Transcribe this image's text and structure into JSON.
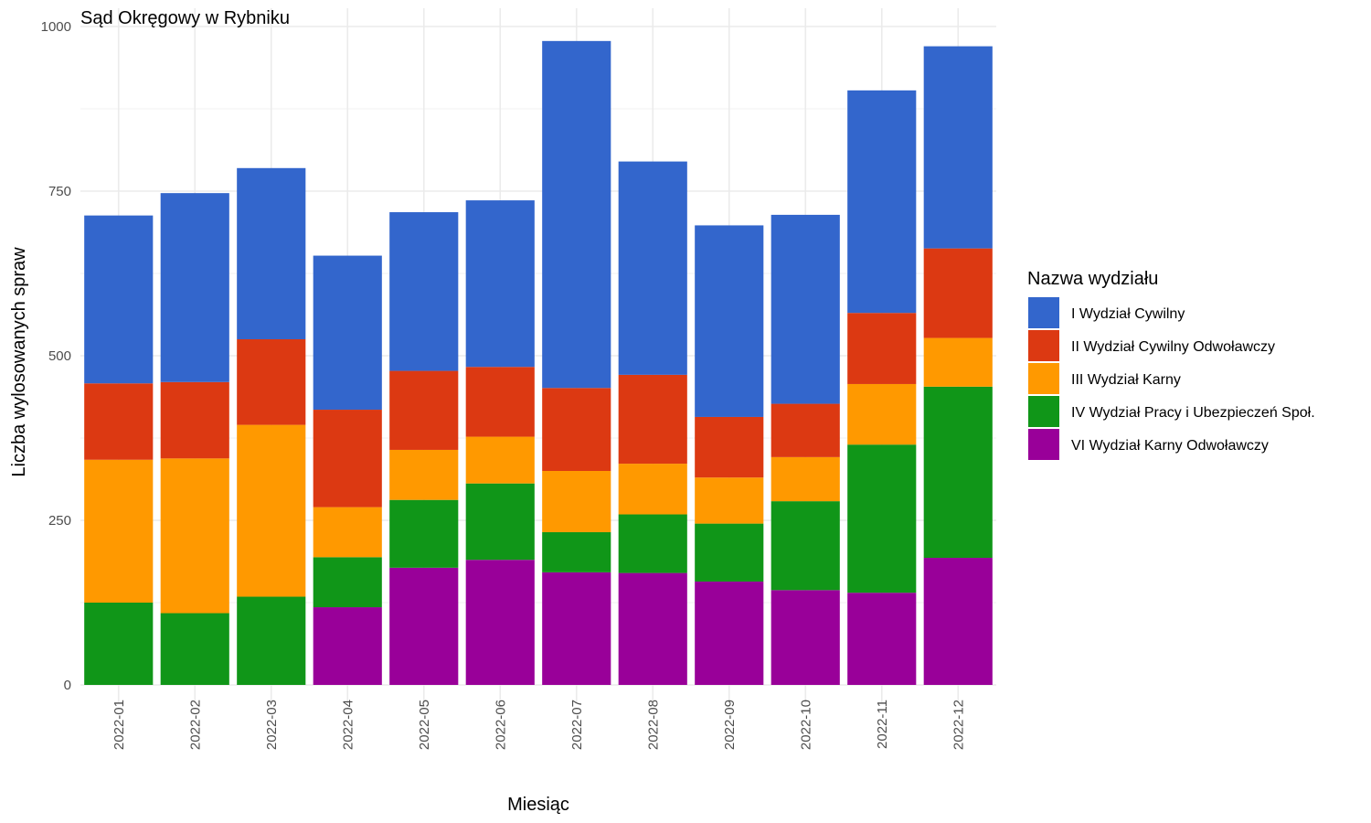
{
  "chart_data": {
    "type": "bar",
    "stacked": true,
    "title": "Sąd Okręgowy w Rybniku",
    "xlabel": "Miesiąc",
    "ylabel": "Liczba wylosowanych spraw",
    "ylim": [
      0,
      1000
    ],
    "yticks": [
      "0",
      "250",
      "500",
      "750",
      "1000"
    ],
    "grid": true,
    "legend": {
      "title": "Nazwa wydziału",
      "placement": "right"
    },
    "categories": [
      "2022-01",
      "2022-02",
      "2022-03",
      "2022-04",
      "2022-05",
      "2022-06",
      "2022-07",
      "2022-08",
      "2022-09",
      "2022-10",
      "2022-11",
      "2022-12"
    ],
    "series": [
      {
        "name": "VI Wydział Karny Odwoławczy",
        "color": "#990099",
        "values": [
          0,
          0,
          0,
          118,
          178,
          190,
          171,
          170,
          157,
          144,
          140,
          193
        ]
      },
      {
        "name": "IV Wydział Pracy i Ubezpieczeń Społ.",
        "color": "#109618",
        "values": [
          125,
          109,
          134,
          76,
          103,
          116,
          61,
          89,
          88,
          135,
          225,
          260
        ]
      },
      {
        "name": "III Wydział Karny",
        "color": "#ff9900",
        "values": [
          217,
          235,
          261,
          76,
          76,
          71,
          93,
          77,
          70,
          67,
          92,
          74
        ]
      },
      {
        "name": "II Wydział Cywilny Odwoławczy",
        "color": "#dc3912",
        "values": [
          116,
          116,
          130,
          148,
          120,
          106,
          126,
          135,
          92,
          81,
          108,
          136
        ]
      },
      {
        "name": "I Wydział Cywilny",
        "color": "#3366cc",
        "values": [
          255,
          287,
          260,
          234,
          241,
          253,
          527,
          324,
          291,
          287,
          338,
          307
        ]
      }
    ],
    "legend_order": [
      "I Wydział Cywilny",
      "II Wydział Cywilny Odwoławczy",
      "III Wydział Karny",
      "IV Wydział Pracy i Ubezpieczeń Społ.",
      "VI Wydział Karny Odwoławczy"
    ]
  }
}
